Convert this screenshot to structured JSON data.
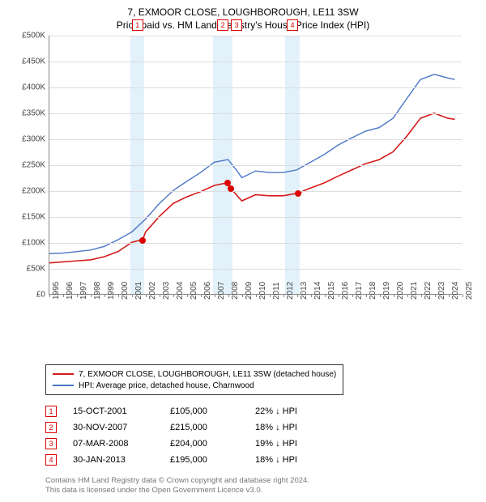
{
  "title_main": "7, EXMOOR CLOSE, LOUGHBOROUGH, LE11 3SW",
  "title_sub": "Price paid vs. HM Land Registry's House Price Index (HPI)",
  "chart": {
    "type": "line",
    "xlim": [
      1995,
      2025
    ],
    "ylim": [
      0,
      500000
    ],
    "ytick_step": 50000,
    "y_ticks": [
      "£0",
      "£50K",
      "£100K",
      "£150K",
      "£200K",
      "£250K",
      "£300K",
      "£350K",
      "£400K",
      "£450K",
      "£500K"
    ],
    "x_ticks": [
      "1995",
      "1996",
      "1997",
      "1998",
      "1999",
      "2000",
      "2001",
      "2002",
      "2003",
      "2004",
      "2005",
      "2006",
      "2007",
      "2008",
      "2009",
      "2010",
      "2011",
      "2012",
      "2013",
      "2014",
      "2015",
      "2016",
      "2017",
      "2018",
      "2019",
      "2020",
      "2021",
      "2022",
      "2023",
      "2024",
      "2025"
    ],
    "background_color": "#ffffff",
    "grid_color": "#dddddd",
    "axis_color": "#888888",
    "shade_color": "rgba(173,216,240,0.35)",
    "shaded_ranges": [
      [
        2000.9,
        2001.9
      ],
      [
        2006.9,
        2008.3
      ],
      [
        2012.1,
        2013.2
      ]
    ],
    "series": [
      {
        "name": "subject",
        "label": "7, EXMOOR CLOSE, LOUGHBOROUGH, LE11 3SW (detached house)",
        "color": "#d61a1a",
        "line_width": 1.6,
        "points": [
          [
            1995,
            60000
          ],
          [
            1996,
            62000
          ],
          [
            1997,
            64000
          ],
          [
            1998,
            66000
          ],
          [
            1999,
            72000
          ],
          [
            2000,
            82000
          ],
          [
            2001,
            100000
          ],
          [
            2001.79,
            105000
          ],
          [
            2002,
            120000
          ],
          [
            2003,
            150000
          ],
          [
            2004,
            175000
          ],
          [
            2005,
            188000
          ],
          [
            2006,
            198000
          ],
          [
            2007,
            210000
          ],
          [
            2007.92,
            215000
          ],
          [
            2008.18,
            204000
          ],
          [
            2008.5,
            195000
          ],
          [
            2009,
            180000
          ],
          [
            2010,
            192000
          ],
          [
            2011,
            190000
          ],
          [
            2012,
            190000
          ],
          [
            2013.08,
            195000
          ],
          [
            2014,
            205000
          ],
          [
            2015,
            215000
          ],
          [
            2016,
            228000
          ],
          [
            2017,
            240000
          ],
          [
            2018,
            252000
          ],
          [
            2019,
            260000
          ],
          [
            2020,
            275000
          ],
          [
            2021,
            305000
          ],
          [
            2022,
            340000
          ],
          [
            2023,
            350000
          ],
          [
            2024,
            340000
          ],
          [
            2024.5,
            338000
          ]
        ]
      },
      {
        "name": "hpi",
        "label": "HPI: Average price, detached house, Charnwood",
        "color": "#4a76c7",
        "line_width": 1.4,
        "points": [
          [
            1995,
            78000
          ],
          [
            1996,
            79000
          ],
          [
            1997,
            82000
          ],
          [
            1998,
            85000
          ],
          [
            1999,
            92000
          ],
          [
            2000,
            105000
          ],
          [
            2001,
            120000
          ],
          [
            2002,
            145000
          ],
          [
            2003,
            175000
          ],
          [
            2004,
            200000
          ],
          [
            2005,
            218000
          ],
          [
            2006,
            235000
          ],
          [
            2007,
            255000
          ],
          [
            2008,
            260000
          ],
          [
            2008.6,
            240000
          ],
          [
            2009,
            225000
          ],
          [
            2010,
            238000
          ],
          [
            2011,
            235000
          ],
          [
            2012,
            235000
          ],
          [
            2013,
            240000
          ],
          [
            2014,
            255000
          ],
          [
            2015,
            270000
          ],
          [
            2016,
            288000
          ],
          [
            2017,
            302000
          ],
          [
            2018,
            315000
          ],
          [
            2019,
            322000
          ],
          [
            2020,
            340000
          ],
          [
            2021,
            378000
          ],
          [
            2022,
            415000
          ],
          [
            2023,
            425000
          ],
          [
            2024,
            418000
          ],
          [
            2024.5,
            415000
          ]
        ]
      }
    ],
    "event_markers": [
      {
        "num": "1",
        "year": 2001.79,
        "price": 105000
      },
      {
        "num": "2",
        "year": 2007.92,
        "price": 215000
      },
      {
        "num": "3",
        "year": 2008.18,
        "price": 204000
      },
      {
        "num": "4",
        "year": 2013.08,
        "price": 195000
      }
    ],
    "marker_box_top_positions": [
      [
        2001.4,
        "1"
      ],
      [
        2007.6,
        "2"
      ],
      [
        2008.6,
        "3"
      ],
      [
        2012.65,
        "4"
      ]
    ]
  },
  "legend": {
    "items": [
      {
        "color": "#d61a1a",
        "label": "7, EXMOOR CLOSE, LOUGHBOROUGH, LE11 3SW (detached house)"
      },
      {
        "color": "#4a76c7",
        "label": "HPI: Average price, detached house, Charnwood"
      }
    ]
  },
  "events_table": [
    {
      "num": "1",
      "date": "15-OCT-2001",
      "price": "£105,000",
      "diff": "22% ↓ HPI"
    },
    {
      "num": "2",
      "date": "30-NOV-2007",
      "price": "£215,000",
      "diff": "18% ↓ HPI"
    },
    {
      "num": "3",
      "date": "07-MAR-2008",
      "price": "£204,000",
      "diff": "19% ↓ HPI"
    },
    {
      "num": "4",
      "date": "30-JAN-2013",
      "price": "£195,000",
      "diff": "18% ↓ HPI"
    }
  ],
  "attribution_line1": "Contains HM Land Registry data © Crown copyright and database right 2024.",
  "attribution_line2": "This data is licensed under the Open Government Licence v3.0."
}
